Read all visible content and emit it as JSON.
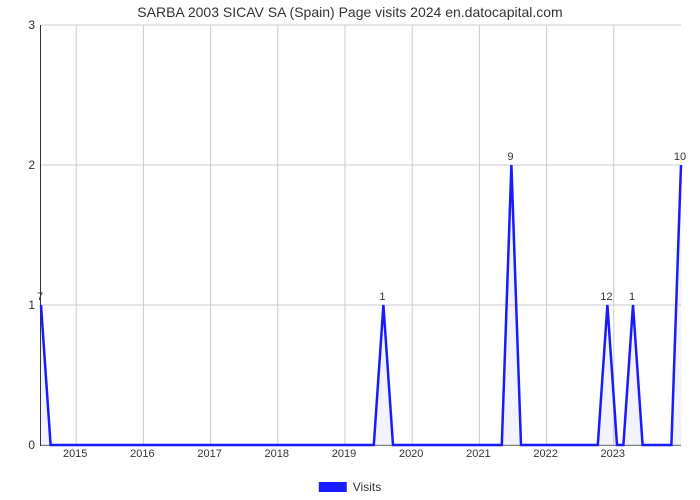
{
  "title": "SARBA 2003 SICAV SA (Spain) Page visits 2024 en.datocapital.com",
  "xlabel": "Visits",
  "legend_label": "Visits",
  "chart": {
    "type": "line",
    "line_color": "#1a1aff",
    "line_width": 2.5,
    "fill_color": "#1a1aff",
    "fill_opacity": 0.05,
    "background_color": "#ffffff",
    "grid_color": "#cccccc",
    "axis_color": "#333333",
    "text_color": "#333333",
    "title_fontsize": 14,
    "tick_fontsize": 12,
    "label_fontsize": 11,
    "ylim": [
      0,
      3
    ],
    "yticks": [
      0,
      1,
      2,
      3
    ],
    "xtick_labels": [
      "2015",
      "2016",
      "2017",
      "2018",
      "2019",
      "2020",
      "2021",
      "2022",
      "2023"
    ],
    "xtick_positions": [
      0.055,
      0.16,
      0.265,
      0.37,
      0.475,
      0.58,
      0.685,
      0.79,
      0.895
    ],
    "data_points": [
      {
        "x": 0.0,
        "y": 1.0,
        "label": "7"
      },
      {
        "x": 0.015,
        "y": 0.0,
        "label": ""
      },
      {
        "x": 0.52,
        "y": 0.0,
        "label": ""
      },
      {
        "x": 0.535,
        "y": 1.0,
        "label": "1"
      },
      {
        "x": 0.55,
        "y": 0.0,
        "label": ""
      },
      {
        "x": 0.72,
        "y": 0.0,
        "label": ""
      },
      {
        "x": 0.735,
        "y": 2.0,
        "label": "9"
      },
      {
        "x": 0.75,
        "y": 0.0,
        "label": ""
      },
      {
        "x": 0.87,
        "y": 0.0,
        "label": ""
      },
      {
        "x": 0.885,
        "y": 1.0,
        "label": "12"
      },
      {
        "x": 0.9,
        "y": 0.0,
        "label": ""
      },
      {
        "x": 0.91,
        "y": 0.0,
        "label": ""
      },
      {
        "x": 0.925,
        "y": 1.0,
        "label": "1"
      },
      {
        "x": 0.94,
        "y": 0.0,
        "label": ""
      },
      {
        "x": 0.985,
        "y": 0.0,
        "label": ""
      },
      {
        "x": 1.0,
        "y": 2.0,
        "label": "10"
      }
    ]
  }
}
